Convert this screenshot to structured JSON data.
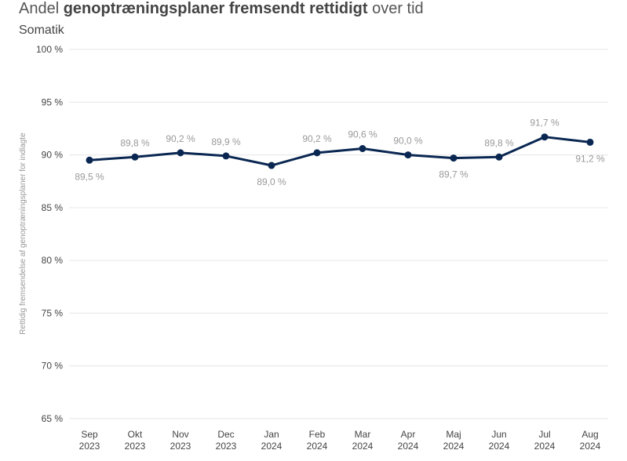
{
  "title": {
    "part1": "Andel ",
    "bold": "genoptræningsplaner fremsendt rettidigt",
    "part2": " over tid"
  },
  "subtitle": "Somatik",
  "colors": {
    "line": "#0a2752",
    "grid": "#e6e6e6",
    "data_label": "#999999",
    "tick_label": "#444444"
  },
  "chart_data": {
    "type": "line",
    "title": "Andel genoptræningsplaner fremsendt rettidigt over tid",
    "subtitle": "Somatik",
    "ylabel": "Rettidig fremsendelse af genoptræningsplaner for indlagte",
    "xlabel": "",
    "ylim": [
      65,
      100
    ],
    "yticks": [
      65,
      70,
      75,
      80,
      85,
      90,
      95,
      100
    ],
    "ytick_labels": [
      "65 %",
      "70 %",
      "75 %",
      "80 %",
      "85 %",
      "90 %",
      "95 %",
      "100 %"
    ],
    "grid": true,
    "categories": [
      [
        "Sep",
        "2023"
      ],
      [
        "Okt",
        "2023"
      ],
      [
        "Nov",
        "2023"
      ],
      [
        "Dec",
        "2023"
      ],
      [
        "Jan",
        "2024"
      ],
      [
        "Feb",
        "2024"
      ],
      [
        "Mar",
        "2024"
      ],
      [
        "Apr",
        "2024"
      ],
      [
        "Maj",
        "2024"
      ],
      [
        "Jun",
        "2024"
      ],
      [
        "Jul",
        "2024"
      ],
      [
        "Aug",
        "2024"
      ]
    ],
    "series": [
      {
        "values": [
          89.5,
          89.8,
          90.2,
          89.9,
          89.0,
          90.2,
          90.6,
          90.0,
          89.7,
          89.8,
          91.7,
          91.2
        ],
        "labels": [
          "89,5 %",
          "89,8 %",
          "90,2 %",
          "89,9 %",
          "89,0 %",
          "90,2 %",
          "90,6 %",
          "90,0 %",
          "89,7 %",
          "89,8 %",
          "91,7 %",
          "91,2 %"
        ],
        "label_positions": [
          "below",
          "above",
          "above",
          "above",
          "below",
          "above",
          "above",
          "above",
          "below",
          "above",
          "above",
          "below"
        ]
      }
    ]
  }
}
